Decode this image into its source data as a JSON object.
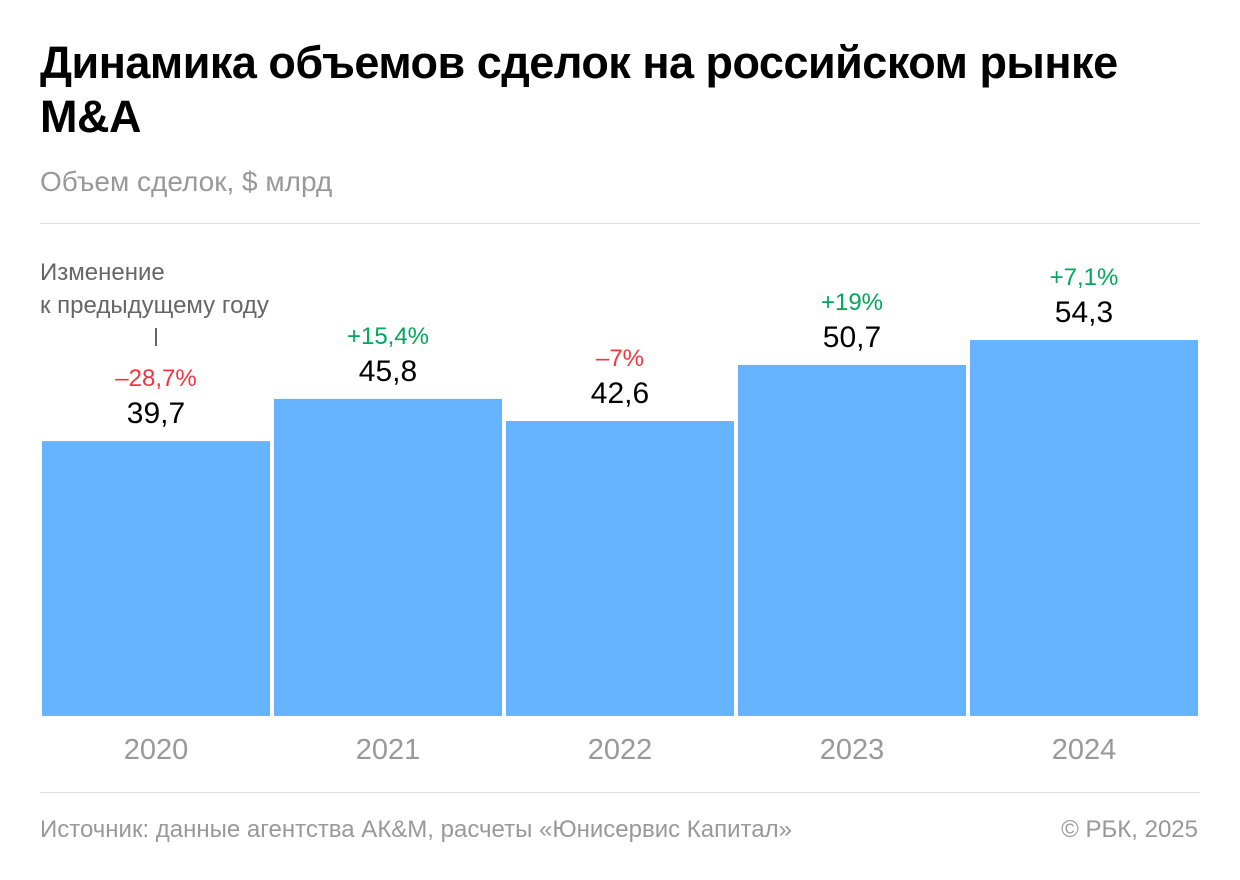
{
  "title": "Динамика объемов сделок на российском рынке M&A",
  "subtitle": "Объем сделок, $ млрд",
  "annotation": [
    "Изменение",
    "к предыдущему году"
  ],
  "footer": {
    "source": "Источник: данные агентства АК&M, расчеты «Юнисервис Капитал»",
    "copyright": "© РБК, 2025"
  },
  "colors": {
    "bar": "#66b3ff",
    "negative": "#f5333f",
    "positive": "#00a85a"
  },
  "chart_data": {
    "type": "bar",
    "title": "Динамика объемов сделок на российском рынке M&A",
    "ylabel": "Объем сделок, $ млрд",
    "categories": [
      "2020",
      "2021",
      "2022",
      "2023",
      "2024"
    ],
    "values": [
      39.7,
      45.8,
      42.6,
      50.7,
      54.3
    ],
    "value_labels": [
      "39,7",
      "45,8",
      "42,6",
      "50,7",
      "54,3"
    ],
    "change_labels": [
      "–28,7%",
      "+15,4%",
      "–7%",
      "+19%",
      "+7,1%"
    ],
    "change_sign": [
      "negative",
      "positive",
      "negative",
      "positive",
      "positive"
    ],
    "ylim": [
      0,
      54.3
    ],
    "grid": false
  }
}
